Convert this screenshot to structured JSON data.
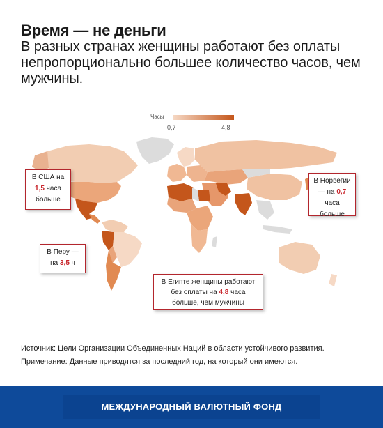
{
  "header": {
    "title": "Время — не деньги",
    "subtitle": "В разных странах женщины работают без оплаты непропорционально большее количество часов, чем мужчины."
  },
  "legend": {
    "label": "Часы",
    "min": "0,7",
    "max": "4,8",
    "color_low": "#f6d9c5",
    "color_high": "#c4561b"
  },
  "callouts": {
    "usa": {
      "line1": "В США на",
      "num": "1,5",
      "line2a": " часа",
      "line3": "больше"
    },
    "norway": {
      "line1": "В Норвегии",
      "line2a": "— на ",
      "num": "0,7",
      "line3": "часа больше"
    },
    "peru": {
      "line1": "В Перу —",
      "line2a": "на ",
      "num": "3,5",
      "line2b": " ч"
    },
    "egypt": {
      "line1": "В Египте женщины работают",
      "line2a": "без оплаты на ",
      "num": "4,8",
      "line2b": " часа",
      "line3": "больше, чем мужчины"
    }
  },
  "source": {
    "line1": "Источник: Цели Организации Объединенных Наций в области устойчивого развития.",
    "line2": "Примечание: Данные приводятся за последний год, на который они имеются."
  },
  "footer": {
    "org": "МЕЖДУНАРОДНЫЙ ВАЛЮТНЫЙ ФОНД"
  },
  "colors": {
    "no_data": "#dcdcdc",
    "callout_border": "#b3262d",
    "highlight_number": "#c8242b",
    "footer_bg": "#0e4a9a"
  }
}
